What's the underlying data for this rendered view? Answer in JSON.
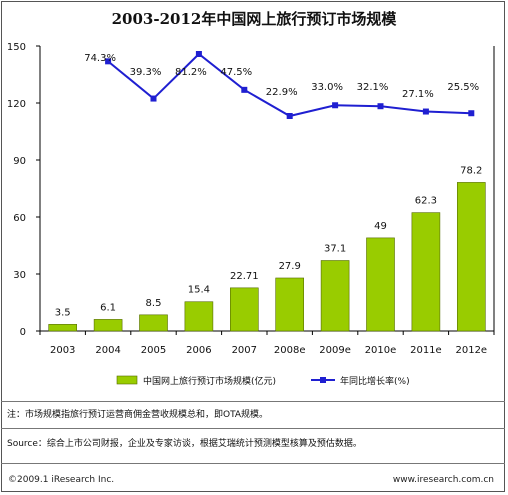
{
  "chart_data": {
    "type": "bar+line",
    "title": "2003-2012年中国网上旅行预订市场规模",
    "categories": [
      "2003",
      "2004",
      "2005",
      "2006",
      "2007",
      "2008e",
      "2009e",
      "2010e",
      "2011e",
      "2012e"
    ],
    "series": [
      {
        "name": "中国网上旅行预订市场规模(亿元)",
        "type": "bar",
        "color": "#99cc00",
        "values": [
          3.5,
          6.1,
          8.5,
          15.4,
          22.71,
          27.9,
          37.1,
          49,
          62.3,
          78.2
        ],
        "labels": [
          "3.5",
          "6.1",
          "8.5",
          "15.4",
          "22.71",
          "27.9",
          "37.1",
          "49",
          "62.3",
          "78.2"
        ]
      },
      {
        "name": "年同比增长率(%)",
        "type": "line",
        "color": "#1f1fd1",
        "values": [
          null,
          74.3,
          39.3,
          81.2,
          47.5,
          22.9,
          33.0,
          32.1,
          27.1,
          25.5
        ],
        "labels": [
          null,
          "74.3%",
          "39.3%",
          "81.2%",
          "47.5%",
          "22.9%",
          "33.0%",
          "32.1%",
          "27.1%",
          "25.5%"
        ]
      }
    ],
    "y_ticks": [
      "0",
      "30",
      "60",
      "90",
      "120",
      "150"
    ],
    "ylim": [
      0,
      150
    ],
    "grid": false,
    "legend": "bottom"
  },
  "notes": {
    "note": "注：市场规模指旅行预订运营商佣金营收规模总和，即OTA规模。",
    "source": "Source：综合上市公司财报，企业及专家访谈，根据艾瑞统计预测模型核算及预估数据。"
  },
  "footer": {
    "copyright": "©2009.1 iResearch Inc.",
    "url": "www.iresearch.com.cn"
  }
}
